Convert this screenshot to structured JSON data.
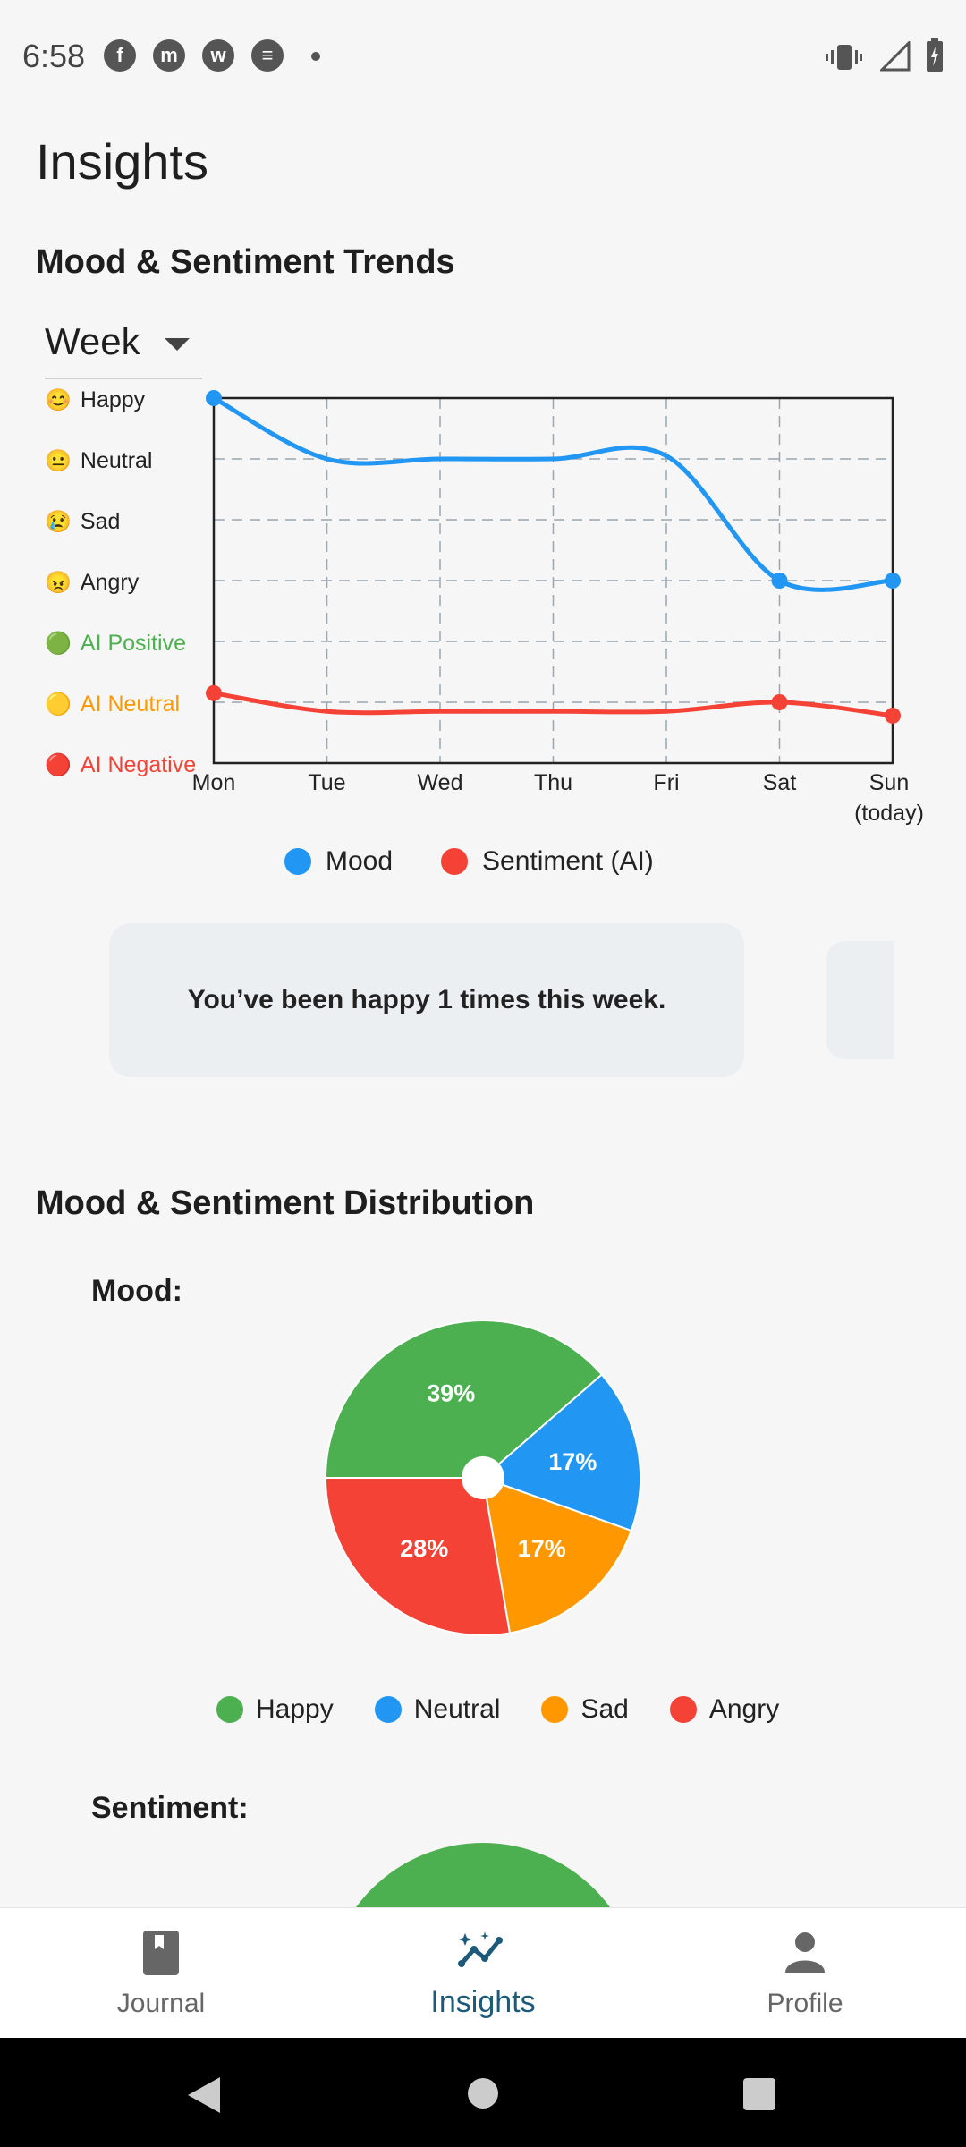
{
  "status_bar": {
    "time": "6:58",
    "app_icons": [
      "facebook-icon",
      "messenger-icon",
      "whatsapp-icon",
      "spotify-icon"
    ],
    "right_icons": [
      "vibrate-icon",
      "signal-icon",
      "battery-icon"
    ]
  },
  "page": {
    "title": "Insights"
  },
  "trends": {
    "title": "Mood & Sentiment Trends",
    "period": "Week",
    "y_labels": [
      {
        "emoji": "😊",
        "text": "Happy",
        "color": "#222222"
      },
      {
        "emoji": "😐",
        "text": "Neutral",
        "color": "#222222"
      },
      {
        "emoji": "😢",
        "text": "Sad",
        "color": "#222222"
      },
      {
        "emoji": "😠",
        "text": "Angry",
        "color": "#222222"
      },
      {
        "emoji": "🟢",
        "text": "AI Positive",
        "color": "#4caf50"
      },
      {
        "emoji": "🟡",
        "text": "AI Neutral",
        "color": "#ff9800"
      },
      {
        "emoji": "🔴",
        "text": "AI Negative",
        "color": "#f44336"
      }
    ],
    "x_labels": [
      "Mon",
      "Tue",
      "Wed",
      "Thu",
      "Fri",
      "Sat",
      "Sun\n(today)"
    ],
    "legend": [
      {
        "label": "Mood",
        "color": "#2196f3"
      },
      {
        "label": "Sentiment (AI)",
        "color": "#f44336"
      }
    ],
    "insight_card": "You’ve been happy 1 times this week."
  },
  "chart_data": [
    {
      "type": "line",
      "x": [
        "Mon",
        "Tue",
        "Wed",
        "Thu",
        "Fri",
        "Sat",
        "Sun (today)"
      ],
      "y_categories": [
        "Happy",
        "Neutral",
        "Sad",
        "Angry",
        "AI Positive",
        "AI Neutral",
        "AI Negative"
      ],
      "series": [
        {
          "name": "Mood",
          "color": "#2196f3",
          "values": [
            0,
            1,
            1,
            1,
            0.95,
            3,
            3
          ],
          "marked_points": [
            0,
            5,
            6
          ]
        },
        {
          "name": "Sentiment (AI)",
          "color": "#f44336",
          "values": [
            4.85,
            5.15,
            5.15,
            5.15,
            5.15,
            5.0,
            5.22
          ],
          "marked_points": [
            0,
            5,
            6
          ]
        }
      ],
      "grid": true
    },
    {
      "type": "pie",
      "title": "Mood:",
      "slices": [
        {
          "label": "Happy",
          "value": 39,
          "display": "39%",
          "color": "#4caf50"
        },
        {
          "label": "Neutral",
          "value": 17,
          "display": "17%",
          "color": "#2196f3"
        },
        {
          "label": "Sad",
          "value": 17,
          "display": "17%",
          "color": "#ff9800"
        },
        {
          "label": "Angry",
          "value": 28,
          "display": "28%",
          "color": "#f44336"
        }
      ]
    }
  ],
  "distribution": {
    "title": "Mood & Sentiment Distribution",
    "mood_label": "Mood:",
    "legend": [
      {
        "label": "Happy",
        "color": "#4caf50"
      },
      {
        "label": "Neutral",
        "color": "#2196f3"
      },
      {
        "label": "Sad",
        "color": "#ff9800"
      },
      {
        "label": "Angry",
        "color": "#f44336"
      }
    ],
    "sentiment_label": "Sentiment:"
  },
  "nav": {
    "items": [
      {
        "label": "Journal",
        "icon": "journal-icon"
      },
      {
        "label": "Insights",
        "icon": "insights-icon",
        "active": true
      },
      {
        "label": "Profile",
        "icon": "profile-icon"
      }
    ]
  }
}
